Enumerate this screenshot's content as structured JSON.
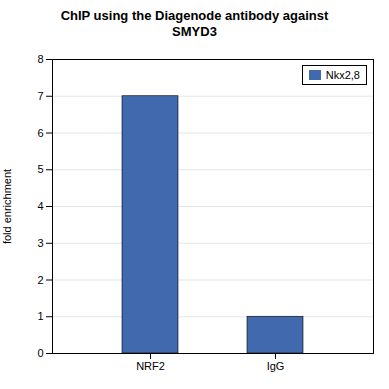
{
  "chart_data": {
    "type": "bar",
    "title": "ChIP using the Diagenode antibody against\nSMYD3",
    "categories": [
      "NRF2",
      "IgG"
    ],
    "series": [
      {
        "name": "Nkx2,8",
        "color": "#4169ae",
        "values": [
          7.0,
          1.0
        ]
      }
    ],
    "ylabel": "fold enrichment",
    "ylim": [
      0,
      8
    ],
    "yticks": [
      0,
      1,
      2,
      3,
      4,
      5,
      6,
      7,
      8
    ],
    "grid": true,
    "legend": "upper right"
  }
}
